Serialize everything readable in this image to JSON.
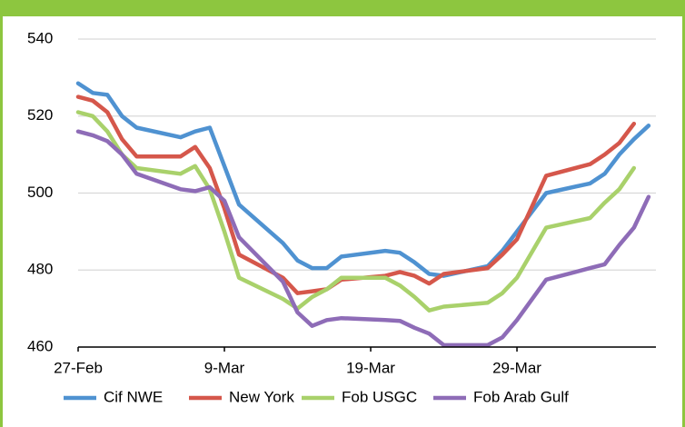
{
  "chart_data": {
    "type": "line",
    "x": [
      0,
      1,
      2,
      3,
      4,
      7,
      8,
      9,
      10,
      11,
      14,
      15,
      16,
      17,
      18,
      21,
      22,
      23,
      24,
      25,
      28,
      29,
      30,
      32,
      35,
      36,
      37,
      38,
      39
    ],
    "xlim": [
      0,
      39.5
    ],
    "xticks": [
      {
        "value": 0,
        "label": "27-Feb"
      },
      {
        "value": 10,
        "label": "9-Mar"
      },
      {
        "value": 20,
        "label": "19-Mar"
      },
      {
        "value": 30,
        "label": "29-Mar"
      }
    ],
    "ylim": [
      460,
      540
    ],
    "yticks": [
      460,
      480,
      500,
      520,
      540
    ],
    "grid": true,
    "legend": "bottom",
    "series": [
      {
        "name": "Cif NWE",
        "color": "#4f92d1",
        "values": [
          528.5,
          526,
          525.5,
          520,
          517,
          514.5,
          516,
          517,
          507,
          497,
          487,
          482.5,
          480.5,
          480.5,
          483.5,
          485,
          484.5,
          482,
          479,
          478.5,
          481,
          485,
          490,
          500,
          502.5,
          505,
          510,
          514,
          517.5
        ]
      },
      {
        "name": "New York",
        "color": "#d5574b",
        "values": [
          525,
          524,
          521,
          514,
          509.5,
          509.5,
          512,
          506.5,
          496,
          484,
          478,
          474,
          474.5,
          475,
          477.5,
          478.5,
          479.5,
          478.5,
          476.5,
          479,
          480.5,
          484,
          488,
          504.5,
          507.5,
          510,
          513,
          518,
          null
        ]
      },
      {
        "name": "Fob USGC",
        "color": "#a9d16b",
        "values": [
          521,
          520,
          516,
          510,
          506.5,
          505,
          507,
          501,
          490,
          478,
          472.5,
          470,
          473,
          475,
          478,
          478,
          476,
          473,
          469.5,
          470.5,
          471.5,
          474,
          478,
          491,
          493.5,
          497.5,
          501,
          506.5,
          null
        ]
      },
      {
        "name": "Fob Arab Gulf",
        "color": "#8e6cb7",
        "values": [
          516,
          515,
          513.5,
          510,
          505,
          501,
          500.5,
          501.5,
          498,
          488.5,
          477,
          469,
          465.5,
          467,
          467.5,
          467,
          466.8,
          465,
          463.5,
          460.5,
          460.5,
          462.5,
          467,
          477.5,
          480.5,
          481.5,
          486.5,
          491,
          499
        ]
      }
    ]
  }
}
